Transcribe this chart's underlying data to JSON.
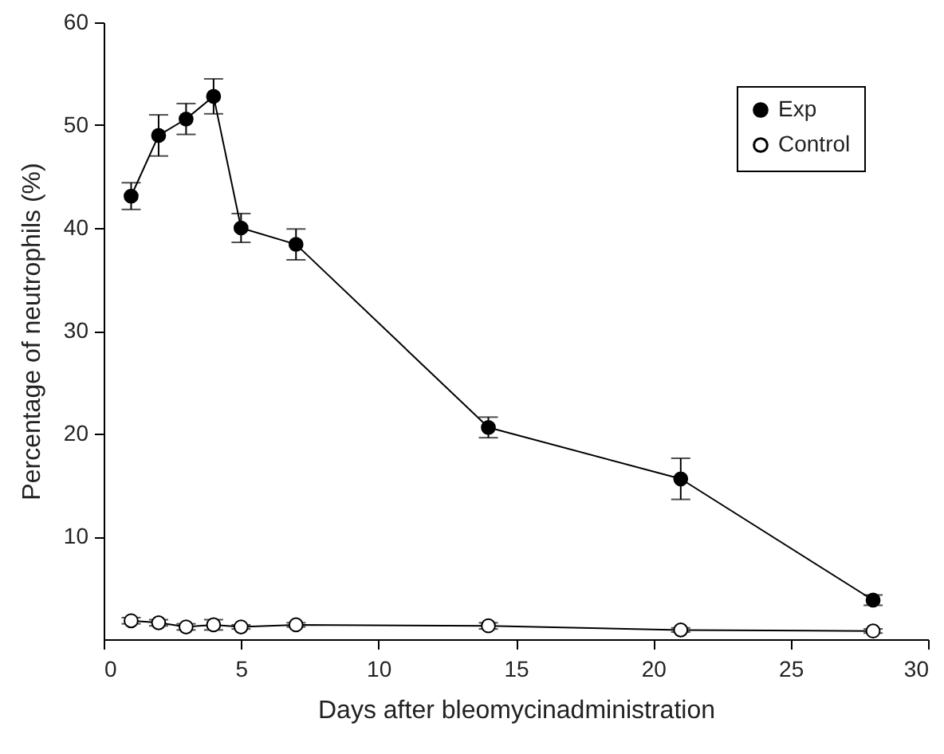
{
  "chart_data": {
    "type": "line",
    "xlabel": "Days after bleomycinadministration",
    "ylabel": "Percentage of neutrophils (%)",
    "x": [
      1,
      2,
      3,
      4,
      5,
      7,
      14,
      21,
      28
    ],
    "series": [
      {
        "name": "Exp",
        "color": "#000000",
        "values": [
          43.1,
          49,
          50.6,
          52.8,
          40,
          38.4,
          20.6,
          15.6,
          3.8
        ],
        "errors": [
          1.3,
          2,
          1.5,
          1.7,
          1.4,
          1.5,
          1,
          2,
          0.5
        ]
      },
      {
        "name": "Control",
        "color": "#ffffff",
        "values": [
          1.8,
          1.6,
          1.2,
          1.4,
          1.2,
          1.4,
          1.3,
          0.9,
          0.8
        ],
        "errors": [
          0.3,
          0.3,
          0.3,
          0.5,
          0.2,
          0.2,
          0.3,
          0.2,
          0.2
        ]
      }
    ],
    "xlim": [
      0,
      30
    ],
    "xticks": [
      0,
      5,
      10,
      15,
      20,
      25,
      30
    ],
    "ylim": [
      0,
      60
    ],
    "yticks": [
      10,
      20,
      30,
      40,
      50,
      60
    ],
    "grid": false,
    "legend": "top right",
    "marker": "circle",
    "line_style": "solid"
  }
}
